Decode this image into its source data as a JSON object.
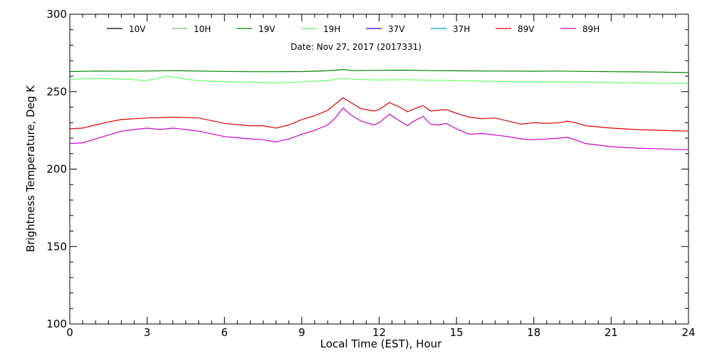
{
  "chart_data": {
    "type": "line",
    "title": "Date: Nov 27, 2017 (2017331)",
    "xlabel": "Local Time (EST), Hour",
    "ylabel": "Brightness Temperature, Deg K",
    "xlim": [
      0,
      24
    ],
    "ylim": [
      100,
      300
    ],
    "xticks": [
      0,
      3,
      6,
      9,
      12,
      15,
      18,
      21,
      24
    ],
    "yticks": [
      100,
      150,
      200,
      250,
      300
    ],
    "grid": false,
    "legend_position": "top",
    "series": [
      {
        "name": "10V",
        "color": "#000000",
        "x": [],
        "y": []
      },
      {
        "name": "10H",
        "color": "#7fbf7f",
        "x": [],
        "y": []
      },
      {
        "name": "19V",
        "color": "#008000",
        "x": [
          0,
          1,
          2,
          3,
          4,
          5,
          6,
          7,
          8,
          9,
          10,
          10.6,
          11,
          12,
          13,
          14,
          15,
          16,
          17,
          18,
          19,
          20,
          21,
          22,
          23,
          24
        ],
        "y": [
          263,
          263.3,
          263.2,
          263.3,
          263.6,
          263.3,
          263.1,
          262.9,
          262.9,
          263,
          263.5,
          264.3,
          263.6,
          263.8,
          263.9,
          263.6,
          263.5,
          263.3,
          263.3,
          263.2,
          263.3,
          263.1,
          262.9,
          262.8,
          262.6,
          262.3
        ]
      },
      {
        "name": "19H",
        "color": "#66ff66",
        "x": [
          0,
          1,
          2,
          3,
          3.8,
          4.5,
          5,
          6,
          7,
          8,
          9,
          10,
          10.6,
          11,
          12,
          13,
          14,
          15,
          16,
          17,
          18,
          19,
          20,
          21,
          22,
          23,
          24
        ],
        "y": [
          258,
          258.5,
          258.2,
          257.2,
          260,
          258.2,
          257,
          256.5,
          256.2,
          255.6,
          256.4,
          257.2,
          258.5,
          258,
          257.5,
          257.8,
          257.4,
          257.1,
          256.8,
          256.5,
          256.4,
          256.3,
          256.1,
          255.9,
          255.7,
          255.5,
          255.2
        ]
      },
      {
        "name": "37V",
        "color": "#3300cc",
        "x": [],
        "y": []
      },
      {
        "name": "37H",
        "color": "#0099cc",
        "x": [],
        "y": []
      },
      {
        "name": "89V",
        "color": "#dd0000",
        "x": [
          0,
          0.5,
          1,
          1.5,
          2,
          3,
          4,
          5,
          6,
          7,
          7.5,
          8,
          8.5,
          9,
          9.5,
          10,
          10.3,
          10.6,
          10.9,
          11.3,
          11.8,
          12,
          12.4,
          12.8,
          13.1,
          13.3,
          13.7,
          14,
          14.3,
          14.6,
          15,
          15.5,
          16,
          16.5,
          17,
          17.5,
          18,
          18.5,
          19,
          19.3,
          19.6,
          20,
          21,
          22,
          23,
          24
        ],
        "y": [
          226,
          226.5,
          228.5,
          230.5,
          232,
          233,
          233.5,
          233,
          229.5,
          228,
          228,
          226.5,
          228.5,
          232,
          234.5,
          238,
          242,
          246,
          243,
          239,
          237.5,
          238.5,
          243,
          240,
          237,
          238.5,
          241,
          237.5,
          238,
          238.5,
          236,
          233.5,
          232.5,
          233,
          231,
          229,
          230,
          229.5,
          230,
          231,
          230,
          228,
          226.5,
          225.5,
          225,
          224.5
        ]
      },
      {
        "name": "89H",
        "color": "#cc00cc",
        "x": [
          0,
          0.5,
          1,
          1.5,
          2,
          2.5,
          3,
          3.5,
          4,
          4.5,
          5,
          6,
          7,
          7.5,
          8,
          8.5,
          9,
          9.5,
          10,
          10.3,
          10.6,
          10.9,
          11.3,
          11.8,
          12,
          12.4,
          12.8,
          13.1,
          13.3,
          13.7,
          14,
          14.3,
          14.6,
          15,
          15.5,
          16,
          16.5,
          17,
          17.5,
          18,
          18.5,
          19,
          19.3,
          19.6,
          20,
          21,
          22,
          23,
          24
        ],
        "y": [
          216.5,
          217,
          219.5,
          222,
          224.5,
          225.5,
          226.5,
          225.5,
          226.5,
          225.5,
          224.5,
          221,
          219.5,
          219,
          217.5,
          219.5,
          222.5,
          225,
          228.5,
          233,
          239.5,
          235,
          231,
          228.5,
          230,
          235.5,
          231,
          228,
          230.5,
          234,
          229,
          228.5,
          229.5,
          226,
          222.5,
          223,
          222,
          221,
          219.5,
          219,
          219.5,
          220,
          220.5,
          219,
          216.5,
          214.5,
          213.5,
          213,
          212.5
        ]
      }
    ]
  }
}
